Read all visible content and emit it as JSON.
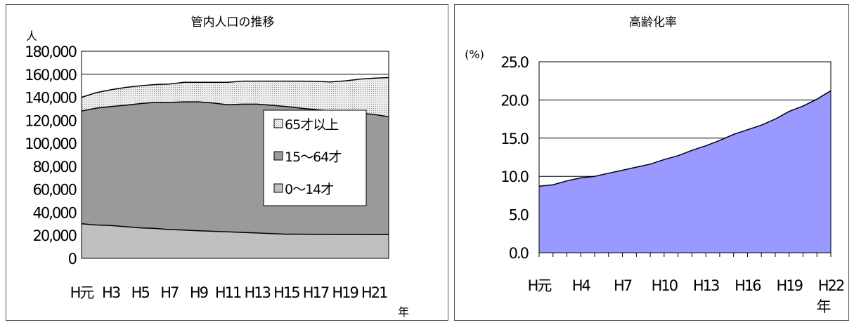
{
  "colors": {
    "young": "#c0c0c0",
    "working": "#9a9a9a",
    "elderly": "#e4e4e4",
    "rate_fill": "#9999ff",
    "line": "#000000"
  },
  "chart_data": [
    {
      "type": "area",
      "stacked": true,
      "title": "管内人口の推移",
      "ylabel": "人",
      "xlabel": "年",
      "ylim": [
        0,
        180000
      ],
      "yticks": [
        0,
        20000,
        40000,
        60000,
        80000,
        100000,
        120000,
        140000,
        160000,
        180000
      ],
      "ytick_labels": [
        "0",
        "20,000",
        "40,000",
        "60,000",
        "80,000",
        "100,000",
        "120,000",
        "140,000",
        "160,000",
        "180,000"
      ],
      "xtick_labels": [
        "H元",
        "H3",
        "H5",
        "H7",
        "H9",
        "H11",
        "H13",
        "H15",
        "H17",
        "H19",
        "H21"
      ],
      "legend_position": "right",
      "grid": true,
      "series": [
        {
          "name": "0〜14才",
          "color_key": "young",
          "values": [
            30000,
            29000,
            28500,
            27500,
            26500,
            26000,
            25000,
            24500,
            24000,
            23500,
            23000,
            22500,
            22000,
            21500,
            21000,
            21000,
            20800,
            20800,
            20700,
            20700,
            20600,
            20600
          ]
        },
        {
          "name": "15〜64才",
          "color_key": "working",
          "values": [
            98000,
            101500,
            103500,
            105500,
            108000,
            109500,
            110500,
            111500,
            112000,
            111500,
            110500,
            111500,
            112000,
            111500,
            111000,
            109500,
            108500,
            107500,
            106500,
            105500,
            104500,
            102500
          ]
        },
        {
          "name": "65才以上",
          "color_key": "elderly",
          "values": [
            12000,
            13500,
            14500,
            15500,
            15500,
            15500,
            16000,
            17000,
            17000,
            18000,
            19500,
            20000,
            20000,
            21000,
            22000,
            23500,
            24500,
            25000,
            27000,
            29500,
            31500,
            34000
          ]
        }
      ]
    },
    {
      "type": "area",
      "title": "高齢化率",
      "ylabel": "(%)",
      "xlabel": "年",
      "ylim": [
        0,
        25
      ],
      "yticks": [
        0,
        5,
        10,
        15,
        20,
        25
      ],
      "ytick_labels": [
        "0.0",
        "5.0",
        "10.0",
        "15.0",
        "20.0",
        "25.0"
      ],
      "xtick_labels": [
        "H元",
        "H4",
        "H7",
        "H10",
        "H13",
        "H16",
        "H19",
        "H22"
      ],
      "grid": true,
      "series": [
        {
          "color_key": "rate_fill",
          "values": [
            8.7,
            8.9,
            9.4,
            9.8,
            10.0,
            10.4,
            10.8,
            11.2,
            11.6,
            12.2,
            12.7,
            13.4,
            14.0,
            14.7,
            15.5,
            16.1,
            16.7,
            17.5,
            18.5,
            19.2,
            20.1,
            21.2
          ]
        }
      ]
    }
  ]
}
